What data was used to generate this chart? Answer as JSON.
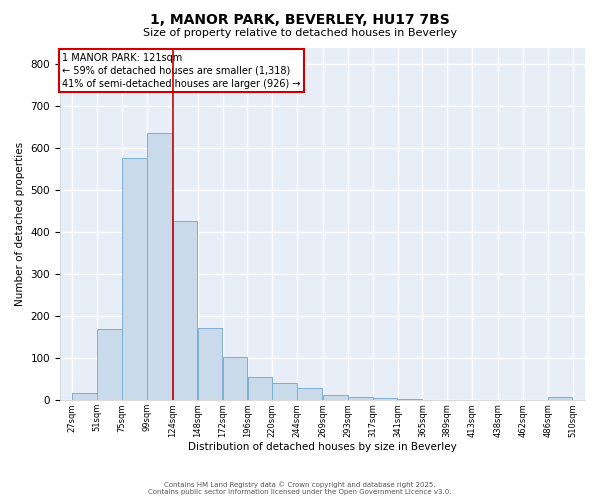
{
  "title_line1": "1, MANOR PARK, BEVERLEY, HU17 7BS",
  "title_line2": "Size of property relative to detached houses in Beverley",
  "xlabel": "Distribution of detached houses by size in Beverley",
  "ylabel": "Number of detached properties",
  "bar_color": "#c9daea",
  "bar_edge_color": "#7bafd4",
  "background_color": "#e8eef8",
  "grid_color": "#ffffff",
  "vline_color": "#cc0000",
  "vline_x_bin_idx": 4,
  "annotation_text": "1 MANOR PARK: 121sqm\n← 59% of detached houses are smaller (1,318)\n41% of semi-detached houses are larger (926) →",
  "annotation_box_edge_color": "#cc0000",
  "annotation_box_face_color": "#ffffff",
  "bins_left": [
    27,
    51,
    75,
    99,
    124,
    148,
    172,
    196,
    220,
    244,
    269,
    293,
    317,
    341,
    365,
    389,
    413,
    438,
    462,
    486
  ],
  "bin_labels": [
    "27sqm",
    "51sqm",
    "75sqm",
    "99sqm",
    "124sqm",
    "148sqm",
    "172sqm",
    "196sqm",
    "220sqm",
    "244sqm",
    "269sqm",
    "293sqm",
    "317sqm",
    "341sqm",
    "365sqm",
    "389sqm",
    "413sqm",
    "438sqm",
    "462sqm",
    "486sqm",
    "510sqm"
  ],
  "bar_heights": [
    17,
    170,
    578,
    637,
    428,
    172,
    102,
    55,
    40,
    30,
    12,
    7,
    5,
    2,
    0,
    0,
    0,
    0,
    0,
    8
  ],
  "bin_width": 24,
  "ylim": [
    0,
    840
  ],
  "yticks": [
    0,
    100,
    200,
    300,
    400,
    500,
    600,
    700,
    800
  ],
  "title_fontsize": 10,
  "subtitle_fontsize": 8,
  "footer_line1": "Contains HM Land Registry data © Crown copyright and database right 2025.",
  "footer_line2": "Contains public sector information licensed under the Open Government Licence v3.0."
}
